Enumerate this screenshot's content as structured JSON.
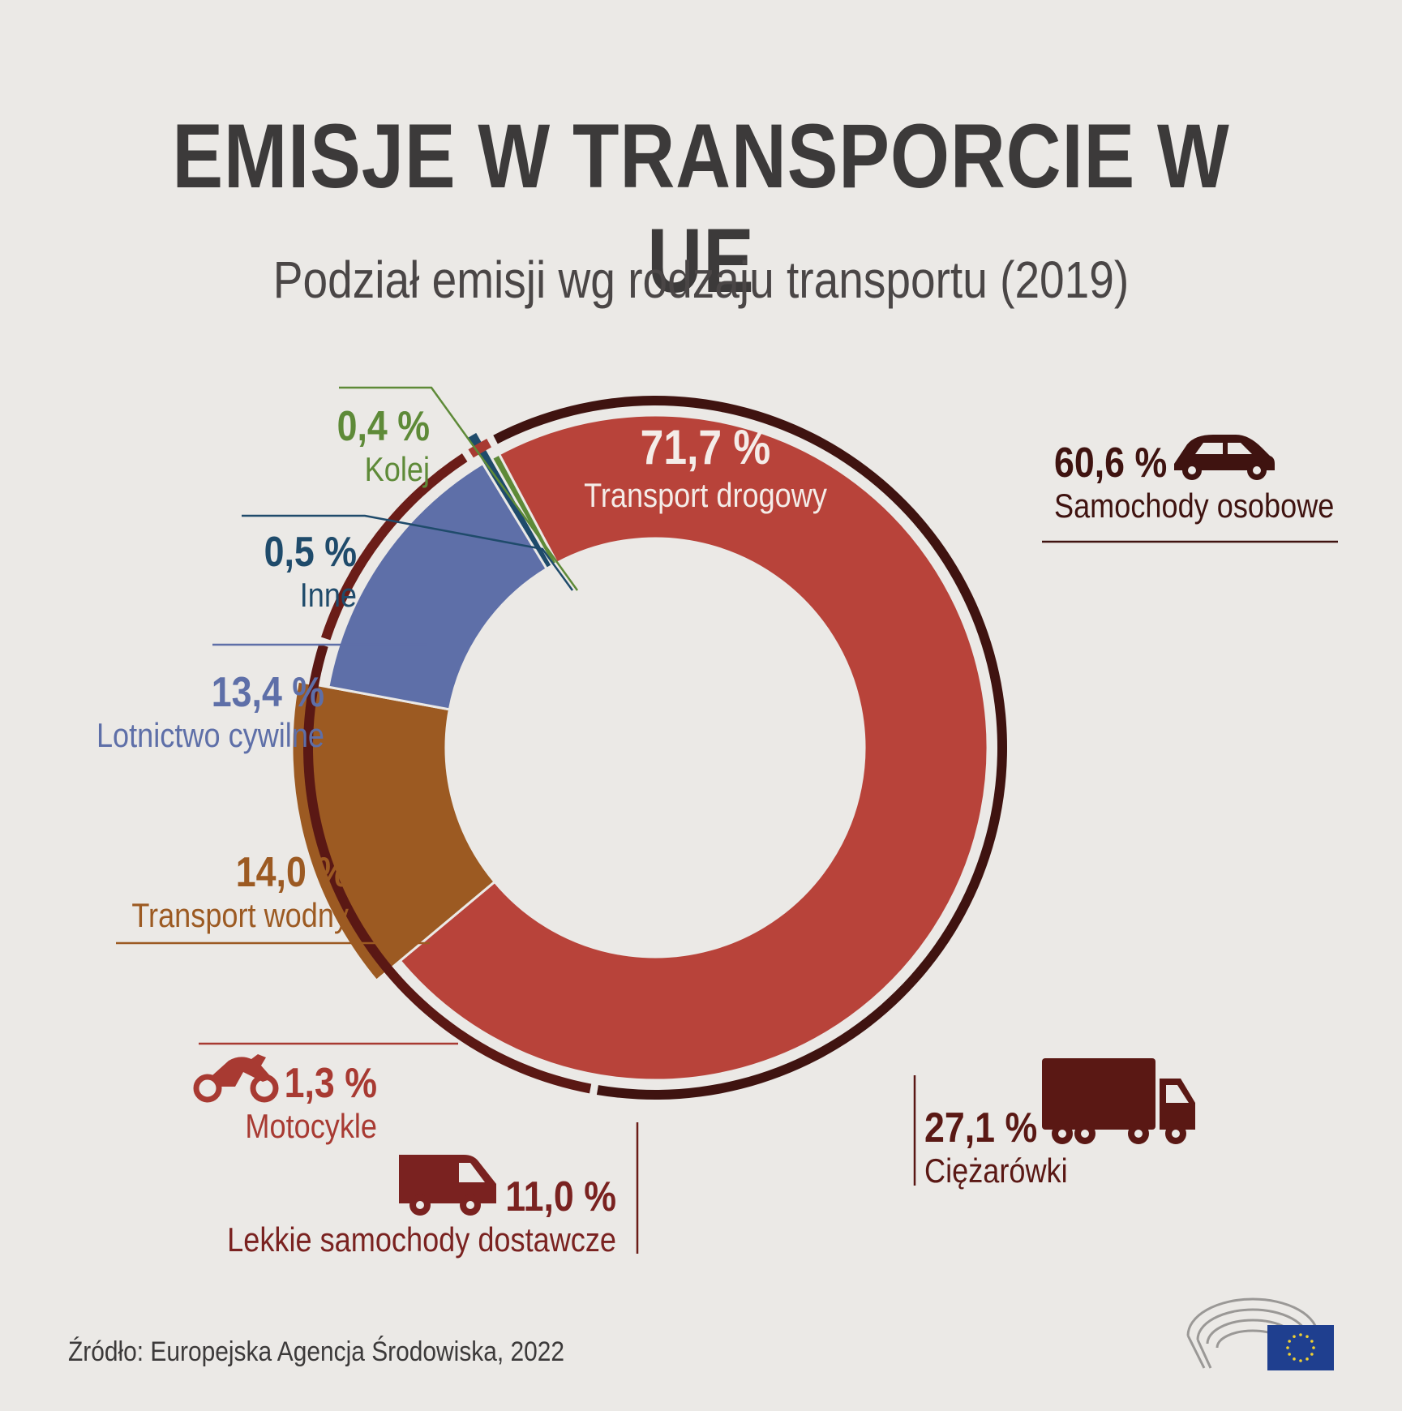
{
  "title": "EMISJE W TRANSPORCIE W UE",
  "subtitle": "Podział emisji wg rodzaju transportu (2019)",
  "source": "Źródło: Europejska Agencja Środowiska, 2022",
  "colors": {
    "road": "#b8433a",
    "water": "#9c5a22",
    "aviation": "#5e6fa8",
    "other": "#1f4b6b",
    "rail": "#5e8a38",
    "cars": "#3f1310",
    "trucks": "#5a1814",
    "vans": "#6b1d18",
    "motorcycles": "#a83a32"
  },
  "chart_data": {
    "type": "pie",
    "variant": "donut",
    "title": "EMISJE W TRANSPORCIE W UE",
    "subtitle": "Podział emisji wg rodzaju transportu (2019)",
    "slices": [
      {
        "label": "Transport drogowy",
        "value": 71.7,
        "display": "71,7 %",
        "color": "#b8433a"
      },
      {
        "label": "Transport wodny",
        "value": 14.0,
        "display": "14,0 %",
        "color": "#9c5a22"
      },
      {
        "label": "Lotnictwo cywilne",
        "value": 13.4,
        "display": "13,4 %",
        "color": "#5e6fa8"
      },
      {
        "label": "Inne",
        "value": 0.5,
        "display": "0,5 %",
        "color": "#1f4b6b"
      },
      {
        "label": "Kolej",
        "value": 0.4,
        "display": "0,4 %",
        "color": "#5e8a38"
      }
    ],
    "road_breakdown": [
      {
        "label": "Samochody osobowe",
        "value": 60.6,
        "display": "60,6 %",
        "icon": "car-icon",
        "color": "#3f1310"
      },
      {
        "label": "Ciężarówki",
        "value": 27.1,
        "display": "27,1 %",
        "icon": "truck-icon",
        "color": "#5a1814"
      },
      {
        "label": "Lekkie samochody dostawcze",
        "value": 11.0,
        "display": "11,0 %",
        "icon": "van-icon",
        "color": "#6b1d18"
      },
      {
        "label": "Motocykle",
        "value": 1.3,
        "display": "1,3 %",
        "icon": "motorcycle-icon",
        "color": "#a83a32"
      }
    ]
  }
}
